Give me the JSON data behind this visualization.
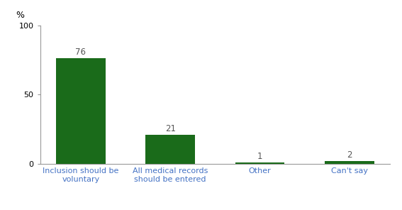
{
  "categories": [
    "Inclusion should be\nvoluntary",
    "All medical records\nshould be entered",
    "Other",
    "Can't say"
  ],
  "values": [
    76,
    21,
    1,
    2
  ],
  "bar_color": "#1a6b1a",
  "ylim": [
    0,
    100
  ],
  "yticks": [
    0,
    50,
    100
  ],
  "ylabel": "%",
  "value_label_color": "#555555",
  "xticklabel_color": "#4472c4",
  "background_color": "#ffffff",
  "bar_width": 0.55,
  "value_fontsize": 8.5,
  "tick_fontsize": 8,
  "ylabel_fontsize": 9
}
